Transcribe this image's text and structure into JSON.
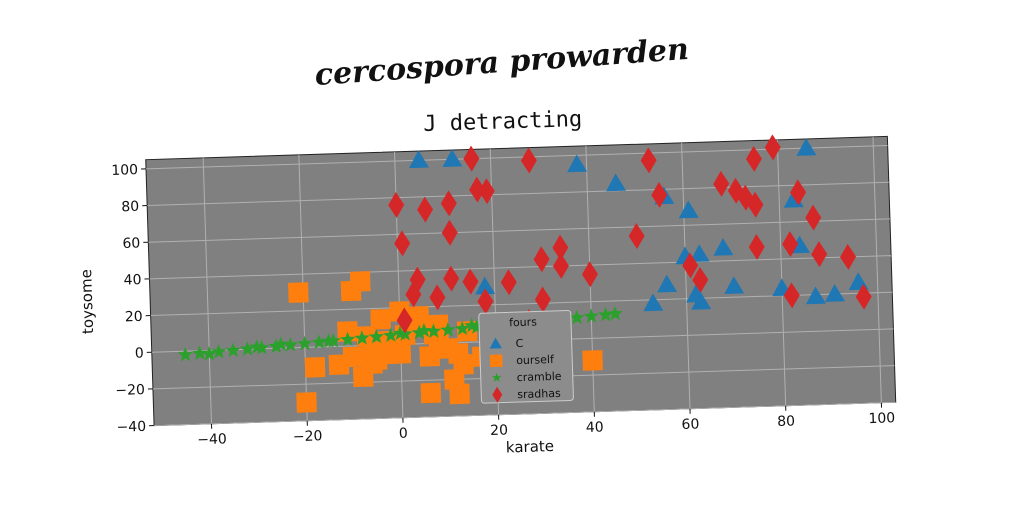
{
  "chart_data": {
    "type": "scatter",
    "suptitle": "cercospora prowarden",
    "title": "J detracting",
    "xlabel": "karate",
    "ylabel": "toysome",
    "xlim": [
      -52,
      103
    ],
    "ylim": [
      -40,
      105
    ],
    "xticks": [
      -40,
      -20,
      0,
      20,
      40,
      60,
      80,
      100
    ],
    "yticks": [
      -40,
      -20,
      0,
      20,
      40,
      60,
      80,
      100
    ],
    "xtick_labels": [
      "−40",
      "−20",
      "0",
      "20",
      "40",
      "60",
      "80",
      "100"
    ],
    "ytick_labels": [
      "−40",
      "−20",
      "0",
      "20",
      "40",
      "60",
      "80",
      "100"
    ],
    "grid": true,
    "background": "#808080",
    "legend": {
      "title": "fours",
      "placement": "lower-center"
    },
    "series": [
      {
        "name": "C",
        "marker": "triangle",
        "color": "#1f77b4",
        "points": [
          [
            5,
            100
          ],
          [
            12,
            100
          ],
          [
            38,
            95
          ],
          [
            46,
            84
          ],
          [
            56,
            76
          ],
          [
            61,
            68
          ],
          [
            83,
            72
          ],
          [
            86,
            100
          ],
          [
            60,
            43
          ],
          [
            63,
            44
          ],
          [
            68,
            47
          ],
          [
            84,
            47
          ],
          [
            56,
            28
          ],
          [
            62,
            22
          ],
          [
            63,
            18
          ],
          [
            70,
            26
          ],
          [
            80,
            24
          ],
          [
            91,
            20
          ],
          [
            53,
            18
          ],
          [
            87,
            19
          ],
          [
            18,
            30
          ],
          [
            96,
            26
          ]
        ]
      },
      {
        "name": "ourself",
        "marker": "square",
        "color": "#ff7f0e",
        "points": [
          [
            -21,
            30
          ],
          [
            -10,
            30
          ],
          [
            -8,
            35
          ],
          [
            -20,
            -30
          ],
          [
            -18,
            -11
          ],
          [
            -13,
            -10
          ],
          [
            -10,
            -6
          ],
          [
            -8,
            -17
          ],
          [
            -6,
            -10
          ],
          [
            -5,
            -8
          ],
          [
            -3,
            -5
          ],
          [
            -1,
            -3
          ],
          [
            0,
            -5
          ],
          [
            -2,
            2
          ],
          [
            1,
            5
          ],
          [
            2,
            10
          ],
          [
            -4,
            14
          ],
          [
            -7,
            5
          ],
          [
            5,
            10
          ],
          [
            7,
            5
          ],
          [
            8,
            0
          ],
          [
            10,
            -3
          ],
          [
            12,
            -6
          ],
          [
            13,
            -12
          ],
          [
            11,
            -20
          ],
          [
            6,
            -27
          ],
          [
            12,
            -28
          ],
          [
            6,
            -7
          ],
          [
            17,
            -8
          ],
          [
            19,
            -6
          ],
          [
            21,
            -12
          ],
          [
            22,
            2
          ],
          [
            40,
            -12
          ],
          [
            -3,
            2
          ],
          [
            0,
            18
          ],
          [
            4,
            15
          ],
          [
            8,
            10
          ],
          [
            14,
            6
          ],
          [
            -11,
            8
          ],
          [
            -6,
            0
          ]
        ]
      },
      {
        "name": "cramble",
        "marker": "star",
        "color": "#2ca02c",
        "points": [
          [
            -45,
            -2
          ],
          [
            -42,
            -1.5
          ],
          [
            -38,
            -1
          ],
          [
            -35,
            -0.5
          ],
          [
            -32,
            0
          ],
          [
            -29,
            0.5
          ],
          [
            -26,
            1
          ],
          [
            -23,
            1.5
          ],
          [
            -20,
            2
          ],
          [
            -17,
            2.5
          ],
          [
            -14,
            3
          ],
          [
            -11,
            3.5
          ],
          [
            -8,
            4
          ],
          [
            -5,
            4.5
          ],
          [
            -2,
            5
          ],
          [
            1,
            5.5
          ],
          [
            4,
            6
          ],
          [
            7,
            6.5
          ],
          [
            10,
            7
          ],
          [
            13,
            7.5
          ],
          [
            16,
            8
          ],
          [
            19,
            8.5
          ],
          [
            22,
            9
          ],
          [
            25,
            9.5
          ],
          [
            28,
            10
          ],
          [
            31,
            10.5
          ],
          [
            34,
            11
          ],
          [
            37,
            11.5
          ],
          [
            40,
            12
          ],
          [
            43,
            12.5
          ],
          [
            -40,
            -2
          ],
          [
            -30,
            1
          ],
          [
            -15,
            3
          ],
          [
            0,
            6
          ],
          [
            15,
            9
          ],
          [
            30,
            11
          ],
          [
            45,
            13
          ],
          [
            -25,
            2
          ],
          [
            5,
            7
          ],
          [
            20,
            9
          ]
        ]
      },
      {
        "name": "sradhas",
        "marker": "diamond",
        "color": "#d62728",
        "points": [
          [
            16,
            100
          ],
          [
            28,
            98
          ],
          [
            53,
            96
          ],
          [
            79,
            101
          ],
          [
            75,
            95
          ],
          [
            17,
            83
          ],
          [
            19,
            82
          ],
          [
            0,
            76
          ],
          [
            6,
            73
          ],
          [
            11,
            76
          ],
          [
            68,
            82
          ],
          [
            71,
            78
          ],
          [
            73,
            74
          ],
          [
            75,
            70
          ],
          [
            55,
            77
          ],
          [
            84,
            76
          ],
          [
            11,
            60
          ],
          [
            1,
            55
          ],
          [
            34,
            50
          ],
          [
            30,
            44
          ],
          [
            34,
            40
          ],
          [
            40,
            35
          ],
          [
            50,
            55
          ],
          [
            75,
            47
          ],
          [
            82,
            48
          ],
          [
            87,
            62
          ],
          [
            94,
            40
          ],
          [
            88,
            42
          ],
          [
            61,
            38
          ],
          [
            63,
            30
          ],
          [
            11,
            35
          ],
          [
            4,
            35
          ],
          [
            3,
            27
          ],
          [
            8,
            25
          ],
          [
            15,
            33
          ],
          [
            18,
            22
          ],
          [
            23,
            32
          ],
          [
            30,
            22
          ],
          [
            27,
            10
          ],
          [
            1,
            13
          ],
          [
            97,
            18
          ],
          [
            82,
            20
          ]
        ]
      }
    ]
  }
}
